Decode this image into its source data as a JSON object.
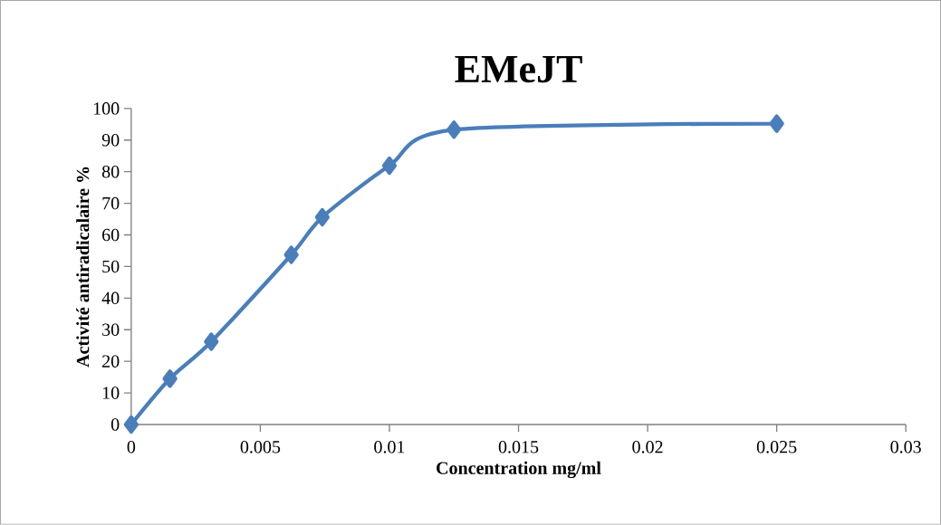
{
  "chart_data": {
    "type": "line",
    "title": "EMeJT",
    "xlabel": "Concentration mg/ml",
    "ylabel": "Activité antiradicalaire %",
    "x": [
      0,
      0.0015,
      0.0031,
      0.0062,
      0.0074,
      0.01,
      0.0125,
      0.025
    ],
    "series": [
      {
        "color": "#4a7ebb",
        "values": [
          0,
          14.5,
          26.2,
          53.7,
          65.6,
          81.9,
          93.3,
          95.2
        ]
      }
    ],
    "marker": "diamond",
    "line_style": "solid",
    "grid": false,
    "legend": false,
    "xlim": [
      0,
      0.03
    ],
    "xticks": [
      0,
      0.005,
      0.01,
      0.015,
      0.02,
      0.025,
      0.03
    ],
    "ylim": [
      0,
      100
    ],
    "yticks": [
      0,
      10,
      20,
      30,
      40,
      50,
      60,
      70,
      80,
      90,
      100
    ]
  }
}
